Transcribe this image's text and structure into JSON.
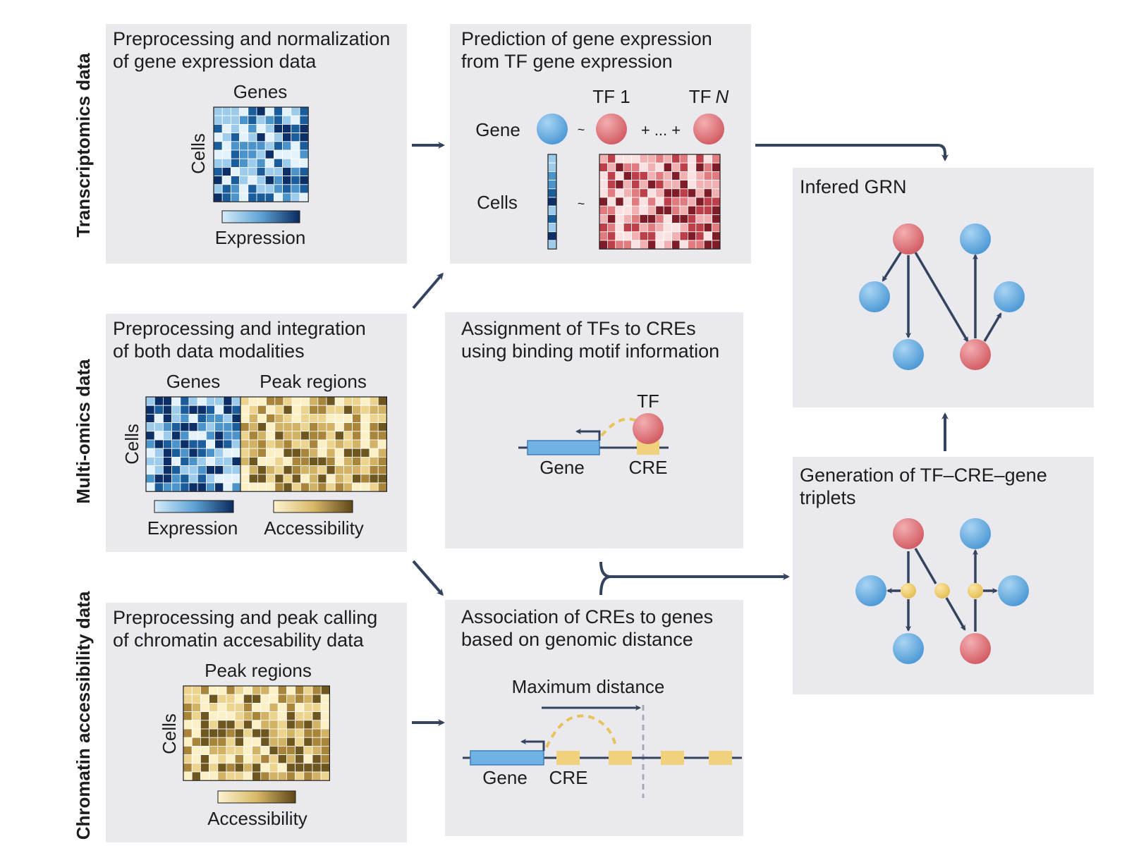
{
  "row_labels": {
    "transcriptomics": "Transcriptomics data",
    "multiomics": "Multi-omics data",
    "chromatin": "Chromatin accessibility data"
  },
  "panels": {
    "p1": {
      "title": [
        "Preprocessing and normalization",
        "of gene expression data"
      ],
      "cols_label": "Genes",
      "rows_label": "Cells",
      "legend_label": "Expression"
    },
    "p2": {
      "title": [
        "Prediction of gene expression",
        "from TF gene expression"
      ],
      "gene_label": "Gene",
      "cells_label": "Cells",
      "tf1_label": "TF 1",
      "tfn_prefix": "TF",
      "tfn_suffix": "N",
      "tilde": "~",
      "plus_dots": "+ ... +"
    },
    "p3": {
      "title": [
        "Preprocessing and integration",
        "of both data modalities"
      ],
      "genes_label": "Genes",
      "peaks_label": "Peak regions",
      "rows_label": "Cells",
      "legend_expr": "Expression",
      "legend_acc": "Accessibility"
    },
    "p4": {
      "title": [
        "Assignment of TFs to CREs",
        "using binding motif information"
      ],
      "tf_label": "TF",
      "gene_label": "Gene",
      "cre_label": "CRE"
    },
    "p5": {
      "title": [
        "Preprocessing and peak calling",
        "of chromatin accesability data"
      ],
      "cols_label": "Peak regions",
      "rows_label": "Cells",
      "legend_label": "Accessibility"
    },
    "p6": {
      "title": [
        "Association of CREs to genes",
        "based on genomic distance"
      ],
      "maxdist_label": "Maximum distance",
      "gene_label": "Gene",
      "cre_label": "CRE"
    },
    "p7": {
      "title": [
        "Generation of TF–CRE–gene",
        "triplets"
      ]
    },
    "p8": {
      "title": [
        "Infered GRN"
      ]
    }
  },
  "colors": {
    "panel_bg": "#e9e9ee",
    "arrow": "#34435e",
    "blue_node": "#6fb2e3",
    "red_node": "#e07b7f",
    "cre_yellow": "#f1d27c",
    "expression_scale": [
      "#e4f2fb",
      "#9ccbeb",
      "#4b93c9",
      "#1b5c9a",
      "#0b2f66"
    ],
    "accessibility_scale": [
      "#fbf0c6",
      "#ecd48e",
      "#d2b264",
      "#a8853a",
      "#6e5620"
    ],
    "tf_scale": [
      "#fbe2e2",
      "#f1b1b3",
      "#e07b7f",
      "#bd3f49",
      "#7e1d28"
    ]
  }
}
